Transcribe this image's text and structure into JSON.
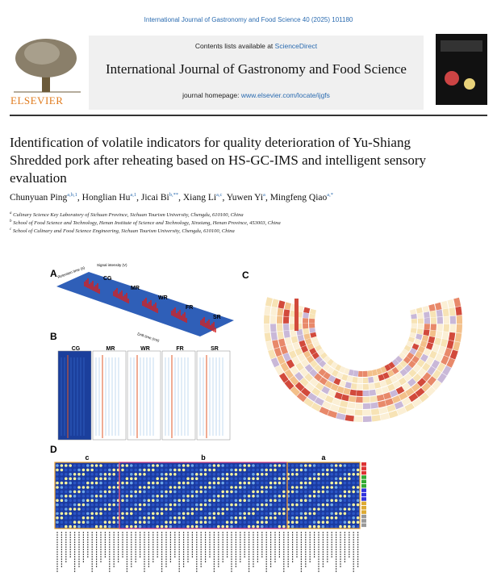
{
  "header": {
    "citation": "International Journal of Gastronomy and Food Science 40 (2025) 101180",
    "contents_prefix": "Contents lists available at ",
    "contents_link": "ScienceDirect",
    "journal_title": "International Journal of Gastronomy and Food Science",
    "homepage_prefix": "journal homepage: ",
    "homepage_url": "www.elsevier.com/locate/ijgfs",
    "publisher": "ELSEVIER"
  },
  "article": {
    "title": "Identification of volatile indicators for quality deterioration of Yu-Shiang Shredded pork after reheating based on HS-GC-IMS and intelligent sensory evaluation",
    "authors": [
      {
        "name": "Chunyuan Ping",
        "sup": "a,b,1"
      },
      {
        "name": "Honglian Hu",
        "sup": "a,1"
      },
      {
        "name": "Jicai Bi",
        "sup": "b,**"
      },
      {
        "name": "Xiang Li",
        "sup": "a,c"
      },
      {
        "name": "Yuwen Yi",
        "sup": "a"
      },
      {
        "name": "Mingfeng Qiao",
        "sup": "a,*"
      }
    ],
    "separator": ",",
    "affiliations": [
      {
        "key": "a",
        "text": "Culinary Science Key Laboratory of Sichuan Province, Sichuan Tourism University, Chengdu, 610100, China"
      },
      {
        "key": "b",
        "text": "School of Food Science and Technology, Henan Institute of Science and Technology, Xinxiang, Henan Province, 453003, China"
      },
      {
        "key": "c",
        "text": "School of Culinary and Food Science Engineering, Sichuan Tourism University, Chengdu, 610100, China"
      }
    ]
  },
  "figure": {
    "panels": [
      "A",
      "B",
      "C",
      "D"
    ],
    "groups": [
      "CG",
      "MR",
      "WR",
      "FR",
      "SR"
    ],
    "axis_labels": [
      "Retention time (s)",
      "Signal intensity (V)",
      "Drift time (ms)"
    ],
    "clusters": [
      "c",
      "b",
      "a"
    ]
  }
}
